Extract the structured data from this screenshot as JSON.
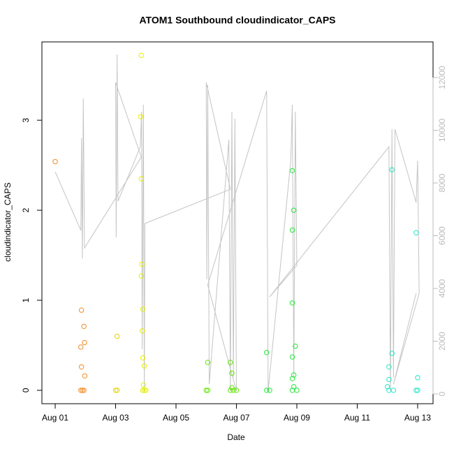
{
  "chart_data": {
    "type": "scatter",
    "title": "ATOM1 Southbound cloudindicator_CAPS",
    "xlabel": "Date",
    "ylabel": "cloudindicator_CAPS",
    "xlim": [
      0.56,
      13.51
    ],
    "xticks": [
      {
        "value": 1,
        "label": "Aug 01"
      },
      {
        "value": 3,
        "label": "Aug 03"
      },
      {
        "value": 5,
        "label": "Aug 05"
      },
      {
        "value": 7,
        "label": "Aug 07"
      },
      {
        "value": 9,
        "label": "Aug 09"
      },
      {
        "value": 11,
        "label": "Aug 11"
      },
      {
        "value": 13,
        "label": "Aug 13"
      }
    ],
    "ylim": [
      -0.149,
      3.87
    ],
    "yticks": [
      0,
      1,
      2,
      3
    ],
    "y2lim": [
      -371,
      13351
    ],
    "y2ticks": [
      0,
      2000,
      4000,
      6000,
      8000,
      10000,
      12000
    ],
    "y2color": "#bbbbbb",
    "series": [
      {
        "type": "scatter",
        "color": "#f08a24",
        "x": [
          1.0,
          1.87,
          1.95,
          1.97,
          1.85,
          1.87,
          1.98,
          1.85,
          1.9,
          1.95
        ],
        "values": [
          2.54,
          0.89,
          0.71,
          0.53,
          0.48,
          0.26,
          0.16,
          0.0,
          0.0,
          0.0
        ]
      },
      {
        "type": "scatter",
        "color": "#e8d400",
        "x": [
          3.05,
          3.05,
          3.0
        ],
        "values": [
          0.6,
          0.0,
          0.0
        ]
      },
      {
        "type": "scatter",
        "color": "#e4f000",
        "x": [
          3.85,
          3.83,
          3.85,
          3.87,
          3.85,
          3.9,
          3.88,
          3.9,
          3.95,
          3.92,
          3.9,
          3.95,
          4.0
        ],
        "values": [
          3.72,
          3.04,
          2.35,
          1.4,
          1.27,
          0.9,
          0.66,
          0.36,
          0.27,
          0.06,
          0.0,
          0.0,
          0.0
        ]
      },
      {
        "type": "scatter",
        "color": "#5ee800",
        "x": [
          6.05,
          6.0,
          6.05,
          6.8,
          6.85,
          6.85,
          6.8,
          6.9,
          7.0
        ],
        "values": [
          0.31,
          0.0,
          0.0,
          0.31,
          0.19,
          0.03,
          0.0,
          0.0,
          0.0
        ]
      },
      {
        "type": "scatter",
        "color": "#22e83a",
        "x": [
          8.0,
          8.0,
          8.1,
          8.85,
          8.9,
          8.85,
          8.85,
          8.95,
          8.85,
          8.9,
          8.85,
          8.9,
          8.85,
          9.0
        ],
        "values": [
          0.42,
          0.0,
          0.0,
          2.44,
          2.0,
          1.78,
          0.97,
          0.49,
          0.37,
          0.17,
          0.13,
          0.04,
          0.0,
          0.0
        ]
      },
      {
        "type": "scatter",
        "color": "#22e8c8",
        "x": [
          12.15,
          12.15,
          12.05,
          12.05,
          12.0,
          12.05,
          12.2,
          12.95,
          13.0,
          12.95,
          13.0
        ],
        "values": [
          2.45,
          0.41,
          0.26,
          0.12,
          0.04,
          0.0,
          0.0,
          1.75,
          0.14,
          0.0,
          0.0
        ]
      },
      {
        "type": "line",
        "axis": "y2",
        "color": "#c4c4c4",
        "x": [
          1.0,
          1.85,
          1.87,
          1.9,
          1.93,
          1.97,
          3.85,
          3.0,
          3.02,
          3.05,
          3.08,
          3.82,
          3.86,
          3.88,
          3.92,
          3.95,
          3.97,
          6.8,
          6.0,
          6.02,
          6.05,
          6.1,
          6.75,
          6.8,
          6.85,
          6.9,
          6.95,
          7.0,
          6.05,
          8.0,
          8.05,
          8.8,
          8.85,
          8.9,
          8.95,
          9.0,
          8.1,
          12.05,
          12.1,
          12.15,
          12.2,
          12.25,
          12.95,
          13.0,
          13.05,
          12.2,
          12.95
        ],
        "values": [
          8424,
          6199,
          9695,
          5139,
          11205,
          5536,
          8980,
          11815,
          5934,
          12874,
          7311,
          9377,
          10702,
          1695,
          10967,
          106,
          6464,
          7762,
          11815,
          4344,
          11709,
          371,
          9642,
          106,
          10702,
          636,
          10437,
          106,
          4132,
          11497,
          106,
          8848,
          10967,
          636,
          10702,
          4874,
          3682,
          9377,
          106,
          10040,
          636,
          10040,
          7258,
          8848,
          3815,
          371,
          3815
        ]
      }
    ]
  }
}
